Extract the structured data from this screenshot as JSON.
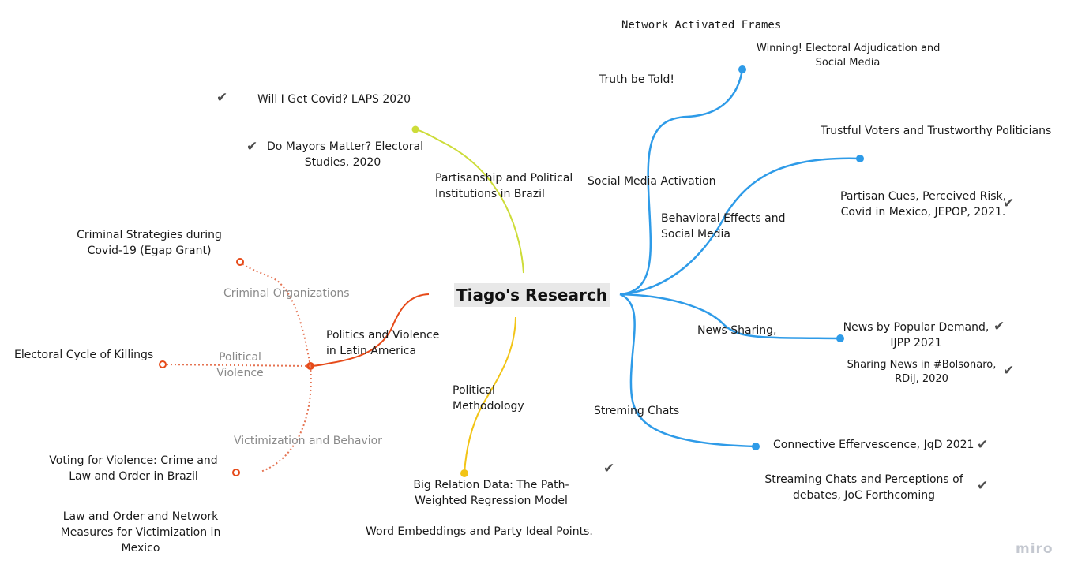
{
  "root": "Tiago's Research",
  "branches": {
    "partisanship": "Partisanship and Political\nInstitutions in Brazil",
    "politics_violence": "Politics and Violence\nin Latin America",
    "methodology": "Political\nMethodology",
    "social_media_activation": "Social Media Activation",
    "behavioral_effects": "Behavioral Effects and\nSocial Media",
    "news_sharing": "News Sharing,",
    "streaming_chats": "Streming Chats"
  },
  "sub_branches": {
    "criminal_organizations": "Criminal Organizations",
    "political_violence": "Political\nViolence",
    "victimization": "Victimization and Behavior"
  },
  "leaves": {
    "will_i_get_covid": "Will I Get Covid? LAPS 2020",
    "do_mayors_matter": "Do Mayors Matter? Electoral\nStudies, 2020",
    "criminal_strategies": "Criminal Strategies during\nCovid-19 (Egap Grant)",
    "electoral_cycle": "Electoral Cycle of Killings",
    "voting_for_violence": "Voting for Violence: Crime and\nLaw and Order in Brazil",
    "law_and_order": "Law and Order and Network\nMeasures for Victimization in\nMexico",
    "big_relation": "Big Relation Data: The Path-\nWeighted Regression Model",
    "word_embeddings": "Word Embeddings and Party Ideal Points.",
    "network_frames": "Network Activated Frames",
    "winning": "Winning! Electoral Adjudication and\nSocial Media",
    "truth_be_told": "Truth be Told!",
    "trustful_voters": "Trustful Voters and Trustworthy Politicians",
    "partisan_cues": "Partisan Cues, Perceived Risk,\nCovid in Mexico, JEPOP, 2021.",
    "news_popular": "News by Popular Demand,\nIJPP 2021",
    "sharing_news": "Sharing News in #Bolsonaro,\nRDiJ, 2020",
    "connective": "Connective Effervescence, JqD 2021",
    "streaming_perceptions": "Streaming Chats and Perceptions of\ndebates, JoC Forthcoming"
  },
  "check_glyph": "✔",
  "logo": "miro",
  "colors": {
    "partisanship": "#cddc39",
    "violence": "#e64a19",
    "violence_dotted": "#e57352",
    "methodology": "#f2c416",
    "social": "#2e9be8"
  }
}
